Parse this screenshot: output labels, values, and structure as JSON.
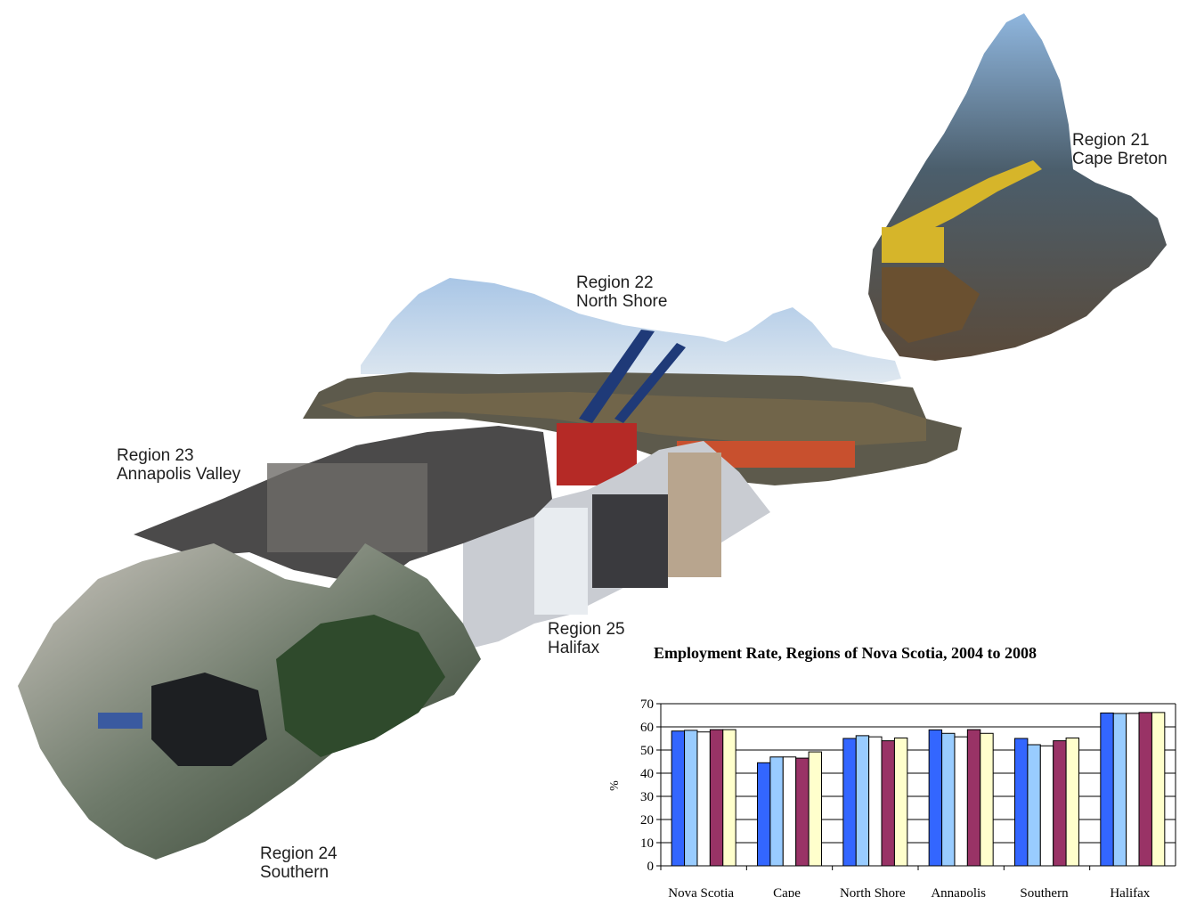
{
  "regions": [
    {
      "line1": "Region 21",
      "line2": "Cape Breton"
    },
    {
      "line1": "Region 22",
      "line2": "North Shore"
    },
    {
      "line1": "Region 23",
      "line2": "Annapolis Valley"
    },
    {
      "line1": "Region 24",
      "line2": "Southern"
    },
    {
      "line1": "Region 25",
      "line2": "Halifax"
    }
  ],
  "chart_data": {
    "type": "bar",
    "title": "Employment Rate, Regions of Nova Scotia, 2004 to 2008",
    "xlabel": "",
    "ylabel": "%",
    "ylim": [
      0,
      70
    ],
    "yticks": [
      0,
      10,
      20,
      30,
      40,
      50,
      60,
      70
    ],
    "grid": true,
    "categories": [
      "Nova Scotia",
      "Cape",
      "North Shore",
      "Annapolis",
      "Southern",
      "Halifax"
    ],
    "series": [
      {
        "values": [
          58.2,
          44.5,
          55.0,
          58.7,
          55.0,
          66.0
        ],
        "color": "#3366ff"
      },
      {
        "values": [
          58.5,
          47.0,
          56.2,
          57.2,
          52.3,
          65.8
        ],
        "color": "#99ccff"
      },
      {
        "values": [
          57.8,
          47.0,
          55.7,
          55.7,
          51.8,
          65.8
        ],
        "color": "#ffffff"
      },
      {
        "values": [
          58.8,
          46.5,
          54.0,
          58.8,
          54.0,
          66.2
        ],
        "color": "#993366"
      },
      {
        "values": [
          58.8,
          49.2,
          55.2,
          57.2,
          55.2,
          66.2
        ],
        "color": "#ffffcc"
      }
    ]
  }
}
